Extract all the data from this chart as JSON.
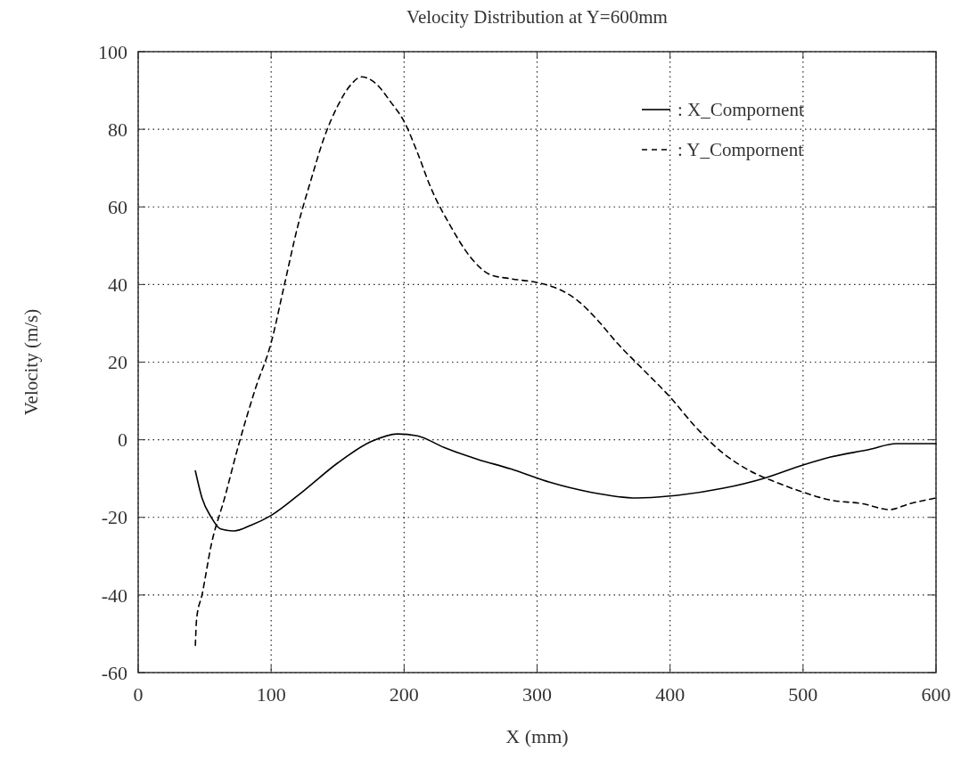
{
  "chart_data": {
    "type": "line",
    "title": "Velocity Distribution at Y=600mm",
    "xlabel": "X (mm)",
    "ylabel": "Velocity (m/s)",
    "xlim": [
      0,
      600
    ],
    "xticks": [
      0,
      100,
      200,
      300,
      400,
      500,
      600
    ],
    "ylim": [
      -60,
      100
    ],
    "yticks": [
      -60,
      -40,
      -20,
      0,
      20,
      40,
      60,
      80,
      100
    ],
    "grid": true,
    "legend": "top right",
    "marker": "none",
    "series": [
      {
        "name": ": X_Compornent",
        "color": "#000000",
        "line_style": "solid",
        "x": [
          43,
          48,
          55,
          62,
          72,
          85,
          100,
          125,
          150,
          175,
          195,
          210,
          230,
          255,
          280,
          310,
          340,
          375,
          400,
          440,
          470,
          500,
          520,
          550,
          570,
          600
        ],
        "values": [
          -8,
          -15,
          -20,
          -23,
          -23.5,
          -22,
          -19.5,
          -13,
          -6,
          -0.5,
          1.5,
          1,
          -2,
          -5,
          -7.5,
          -11,
          -13.5,
          -15,
          -14.5,
          -12.5,
          -10,
          -6.5,
          -4.5,
          -2.5,
          -1,
          -1
        ]
      },
      {
        "name": ": Y_Compornent",
        "color": "#000000",
        "line_style": "dashed",
        "x": [
          43,
          44,
          48,
          55,
          65,
          75,
          88,
          100,
          110,
          120,
          130,
          140,
          150,
          160,
          168,
          178,
          190,
          200,
          210,
          220,
          235,
          250,
          265,
          280,
          300,
          315,
          330,
          345,
          360,
          380,
          400,
          420,
          440,
          460,
          480,
          500,
          520,
          545,
          565,
          580,
          600
        ],
        "values": [
          -53,
          -46,
          -40,
          -27,
          -15,
          -2,
          13,
          25,
          40,
          55,
          67,
          78,
          86,
          91.5,
          93.5,
          92,
          87,
          82,
          74,
          65,
          55,
          47,
          42.5,
          41.5,
          40.5,
          39,
          36,
          31,
          25,
          18,
          11,
          3,
          -3.5,
          -8,
          -11,
          -13.5,
          -15.5,
          -16.5,
          -18,
          -16.5,
          -15
        ]
      }
    ]
  }
}
